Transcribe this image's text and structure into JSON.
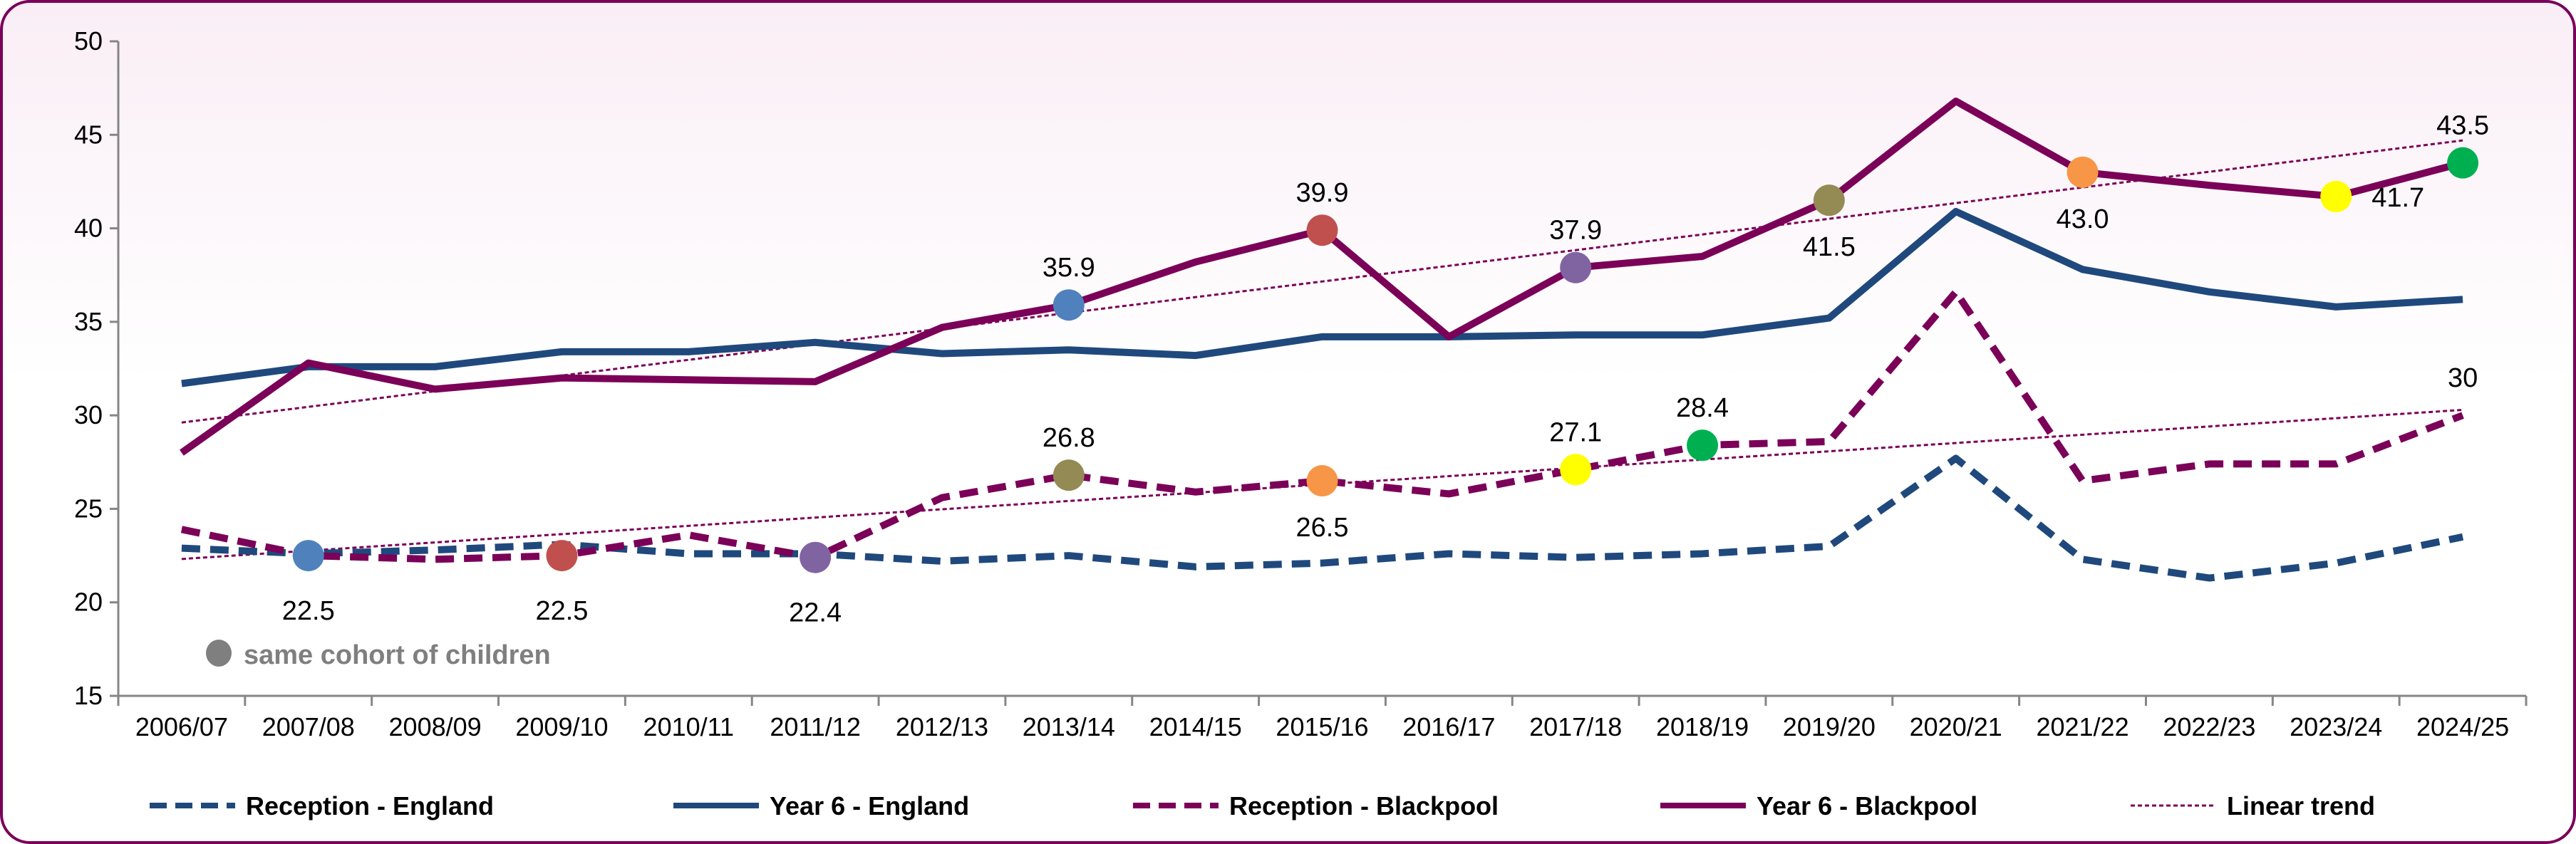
{
  "chart_data": {
    "type": "line",
    "title": "",
    "xlabel": "",
    "ylabel": "",
    "ylim": [
      15,
      50
    ],
    "yticks": [
      15,
      20,
      25,
      30,
      35,
      40,
      45,
      50
    ],
    "grid": false,
    "legend_position": "bottom",
    "categories": [
      "2006/07",
      "2007/08",
      "2008/09",
      "2009/10",
      "2010/11",
      "2011/12",
      "2012/13",
      "2013/14",
      "2014/15",
      "2015/16",
      "2016/17",
      "2017/18",
      "2018/19",
      "2019/20",
      "2020/21",
      "2021/22",
      "2022/23",
      "2023/24",
      "2024/25"
    ],
    "series": [
      {
        "name": "Reception - England",
        "style": "dashed",
        "color": "#1F497D",
        "values": [
          22.9,
          22.6,
          22.8,
          23.1,
          22.6,
          22.6,
          22.2,
          22.5,
          21.9,
          22.1,
          22.6,
          22.4,
          22.6,
          23.0,
          27.7,
          22.3,
          21.3,
          22.1,
          23.5
        ]
      },
      {
        "name": "Year 6 - England",
        "style": "solid",
        "color": "#1F497D",
        "values": [
          31.7,
          32.6,
          32.6,
          33.4,
          33.4,
          33.9,
          33.3,
          33.5,
          33.2,
          34.2,
          34.2,
          34.3,
          34.3,
          35.2,
          40.9,
          37.8,
          36.6,
          35.8,
          36.2
        ]
      },
      {
        "name": "Reception - Blackpool",
        "style": "dashed",
        "color": "#7B0058",
        "values": [
          23.9,
          22.5,
          22.3,
          22.5,
          23.6,
          22.4,
          25.6,
          26.8,
          25.9,
          26.5,
          25.8,
          27.1,
          28.4,
          28.6,
          36.6,
          26.5,
          27.4,
          27.4,
          30.0
        ]
      },
      {
        "name": "Year 6 - Blackpool",
        "style": "solid",
        "color": "#7B0058",
        "values": [
          28.0,
          32.8,
          31.4,
          32.0,
          31.9,
          31.8,
          34.7,
          35.9,
          38.2,
          39.9,
          34.2,
          37.9,
          38.5,
          41.5,
          46.8,
          43.0,
          42.3,
          41.7,
          43.5
        ]
      }
    ],
    "trend_legend": "Linear trend",
    "trend_color": "#7B0058",
    "markers": [
      {
        "series": 2,
        "index": 1,
        "color": "#4F81BD",
        "label": "22.5",
        "pos": "below"
      },
      {
        "series": 2,
        "index": 3,
        "color": "#C0504D",
        "label": "22.5",
        "pos": "below"
      },
      {
        "series": 2,
        "index": 5,
        "color": "#8064A2",
        "label": "22.4",
        "pos": "below"
      },
      {
        "series": 2,
        "index": 7,
        "color": "#948A54",
        "label": "26.8",
        "pos": "above"
      },
      {
        "series": 2,
        "index": 9,
        "color": "#F79646",
        "label": "26.5",
        "pos": "below"
      },
      {
        "series": 2,
        "index": 11,
        "color": "#FFFF00",
        "label": "27.1",
        "pos": "above"
      },
      {
        "series": 2,
        "index": 12,
        "color": "#00B050",
        "label": "28.4",
        "pos": "above"
      },
      {
        "series": 2,
        "index": 18,
        "color": null,
        "label": "30",
        "pos": "above"
      },
      {
        "series": 3,
        "index": 7,
        "color": "#4F81BD",
        "label": "35.9",
        "pos": "above"
      },
      {
        "series": 3,
        "index": 9,
        "color": "#C0504D",
        "label": "39.9",
        "pos": "above"
      },
      {
        "series": 3,
        "index": 11,
        "color": "#8064A2",
        "label": "37.9",
        "pos": "above"
      },
      {
        "series": 3,
        "index": 13,
        "color": "#948A54",
        "label": "41.5",
        "pos": "below"
      },
      {
        "series": 3,
        "index": 15,
        "color": "#F79646",
        "label": "43.0",
        "pos": "below"
      },
      {
        "series": 3,
        "index": 17,
        "color": "#FFFF00",
        "label": "41.7",
        "pos": "right"
      },
      {
        "series": 3,
        "index": 18,
        "color": "#00B050",
        "label": "43.5",
        "pos": "above"
      }
    ],
    "annotation": {
      "text": "same cohort of children",
      "marker_color": "#7F7F7F"
    }
  }
}
